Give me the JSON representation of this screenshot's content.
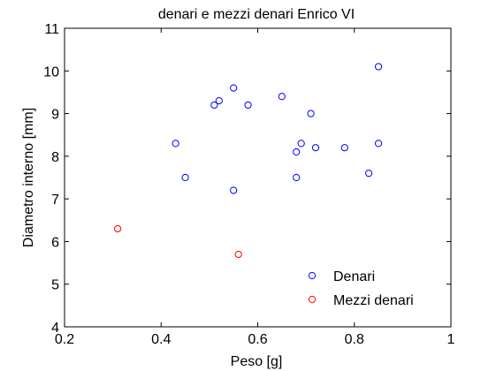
{
  "chart_data": {
    "type": "scatter",
    "title": "denari e mezzi denari Enrico VI",
    "xlabel": "Peso [g]",
    "ylabel": "Diametro interno [mm]",
    "xlim": [
      0.2,
      1
    ],
    "ylim": [
      4,
      11
    ],
    "xticks": [
      0.2,
      0.4,
      0.6,
      0.8,
      1
    ],
    "xtick_labels": [
      "0.2",
      "0.4",
      "0.6",
      "0.8",
      "1"
    ],
    "yticks": [
      4,
      5,
      6,
      7,
      8,
      9,
      10,
      11
    ],
    "ytick_labels": [
      "4",
      "5",
      "6",
      "7",
      "8",
      "9",
      "10",
      "11"
    ],
    "grid": false,
    "legend_position": "bottom-right",
    "series": [
      {
        "name": "Denari",
        "color": "#0000ff",
        "marker": "circle-open",
        "points": [
          {
            "x": 0.43,
            "y": 8.3
          },
          {
            "x": 0.45,
            "y": 7.5
          },
          {
            "x": 0.51,
            "y": 9.2
          },
          {
            "x": 0.52,
            "y": 9.3
          },
          {
            "x": 0.55,
            "y": 9.6
          },
          {
            "x": 0.55,
            "y": 7.2
          },
          {
            "x": 0.58,
            "y": 9.2
          },
          {
            "x": 0.65,
            "y": 9.4
          },
          {
            "x": 0.68,
            "y": 8.1
          },
          {
            "x": 0.68,
            "y": 7.5
          },
          {
            "x": 0.69,
            "y": 8.3
          },
          {
            "x": 0.71,
            "y": 9.0
          },
          {
            "x": 0.72,
            "y": 8.2
          },
          {
            "x": 0.78,
            "y": 8.2
          },
          {
            "x": 0.83,
            "y": 7.6
          },
          {
            "x": 0.85,
            "y": 10.1
          },
          {
            "x": 0.85,
            "y": 8.3
          }
        ]
      },
      {
        "name": "Mezzi denari",
        "color": "#ff0000",
        "marker": "circle-open",
        "points": [
          {
            "x": 0.31,
            "y": 6.3
          },
          {
            "x": 0.56,
            "y": 5.7
          }
        ]
      }
    ]
  }
}
